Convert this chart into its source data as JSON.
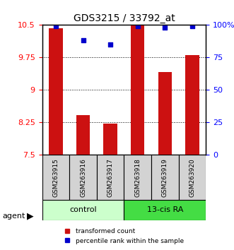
{
  "title": "GDS3215 / 33792_at",
  "categories": [
    "GSM263915",
    "GSM263916",
    "GSM263917",
    "GSM263918",
    "GSM263919",
    "GSM263920"
  ],
  "red_values": [
    10.42,
    8.42,
    8.22,
    10.5,
    9.42,
    9.8
  ],
  "blue_values": [
    99,
    88,
    85,
    99,
    98,
    99
  ],
  "ylim_left": [
    7.5,
    10.5
  ],
  "ylim_right": [
    0,
    100
  ],
  "yticks_left": [
    7.5,
    8.25,
    9.0,
    9.75,
    10.5
  ],
  "ytick_labels_left": [
    "7.5",
    "8.25",
    "9",
    "9.75",
    "10.5"
  ],
  "yticks_right": [
    0,
    25,
    50,
    75,
    100
  ],
  "ytick_labels_right": [
    "0",
    "25",
    "50",
    "75",
    "100%"
  ],
  "groups": [
    {
      "label": "control",
      "start": 0,
      "end": 3,
      "color": "#ccffcc"
    },
    {
      "label": "13-cis RA",
      "start": 3,
      "end": 6,
      "color": "#44dd44"
    }
  ],
  "agent_label": "agent",
  "legend_red": "transformed count",
  "legend_blue": "percentile rank within the sample",
  "bar_color": "#cc1111",
  "dot_color": "#0000cc",
  "bar_bottom": 7.5,
  "grid_color": "#000000",
  "bg_color": "#ffffff"
}
